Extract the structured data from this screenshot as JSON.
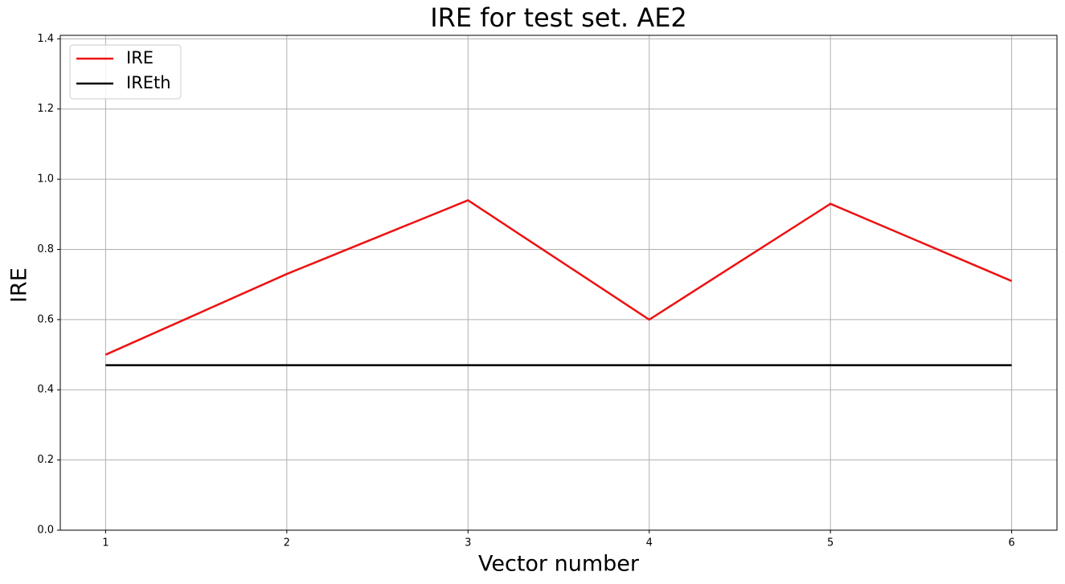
{
  "chart_data": {
    "type": "line",
    "title": "IRE for test set. AE2",
    "x_label": "Vector number",
    "y_label": "IRE",
    "x": [
      1,
      2,
      3,
      4,
      5,
      6
    ],
    "series": [
      {
        "name": "IRE",
        "color": "#ee1111",
        "values": [
          0.5,
          0.73,
          0.94,
          0.6,
          0.93,
          0.71
        ]
      },
      {
        "name": "IREth",
        "color": "#000000",
        "values": [
          0.47,
          0.47,
          0.47,
          0.47,
          0.47,
          0.47
        ]
      }
    ],
    "xlim": [
      0.75,
      6.25
    ],
    "xticks": [
      1,
      2,
      3,
      4,
      5,
      6
    ],
    "ylim": [
      0,
      1.41
    ],
    "yticks": [
      {
        "value": 0,
        "label": "0.0"
      },
      0.2,
      0.4,
      0.6,
      0.8,
      {
        "value": 1,
        "label": "1.0"
      },
      1.2,
      1.4
    ],
    "grid": true,
    "legend": "upper left"
  }
}
